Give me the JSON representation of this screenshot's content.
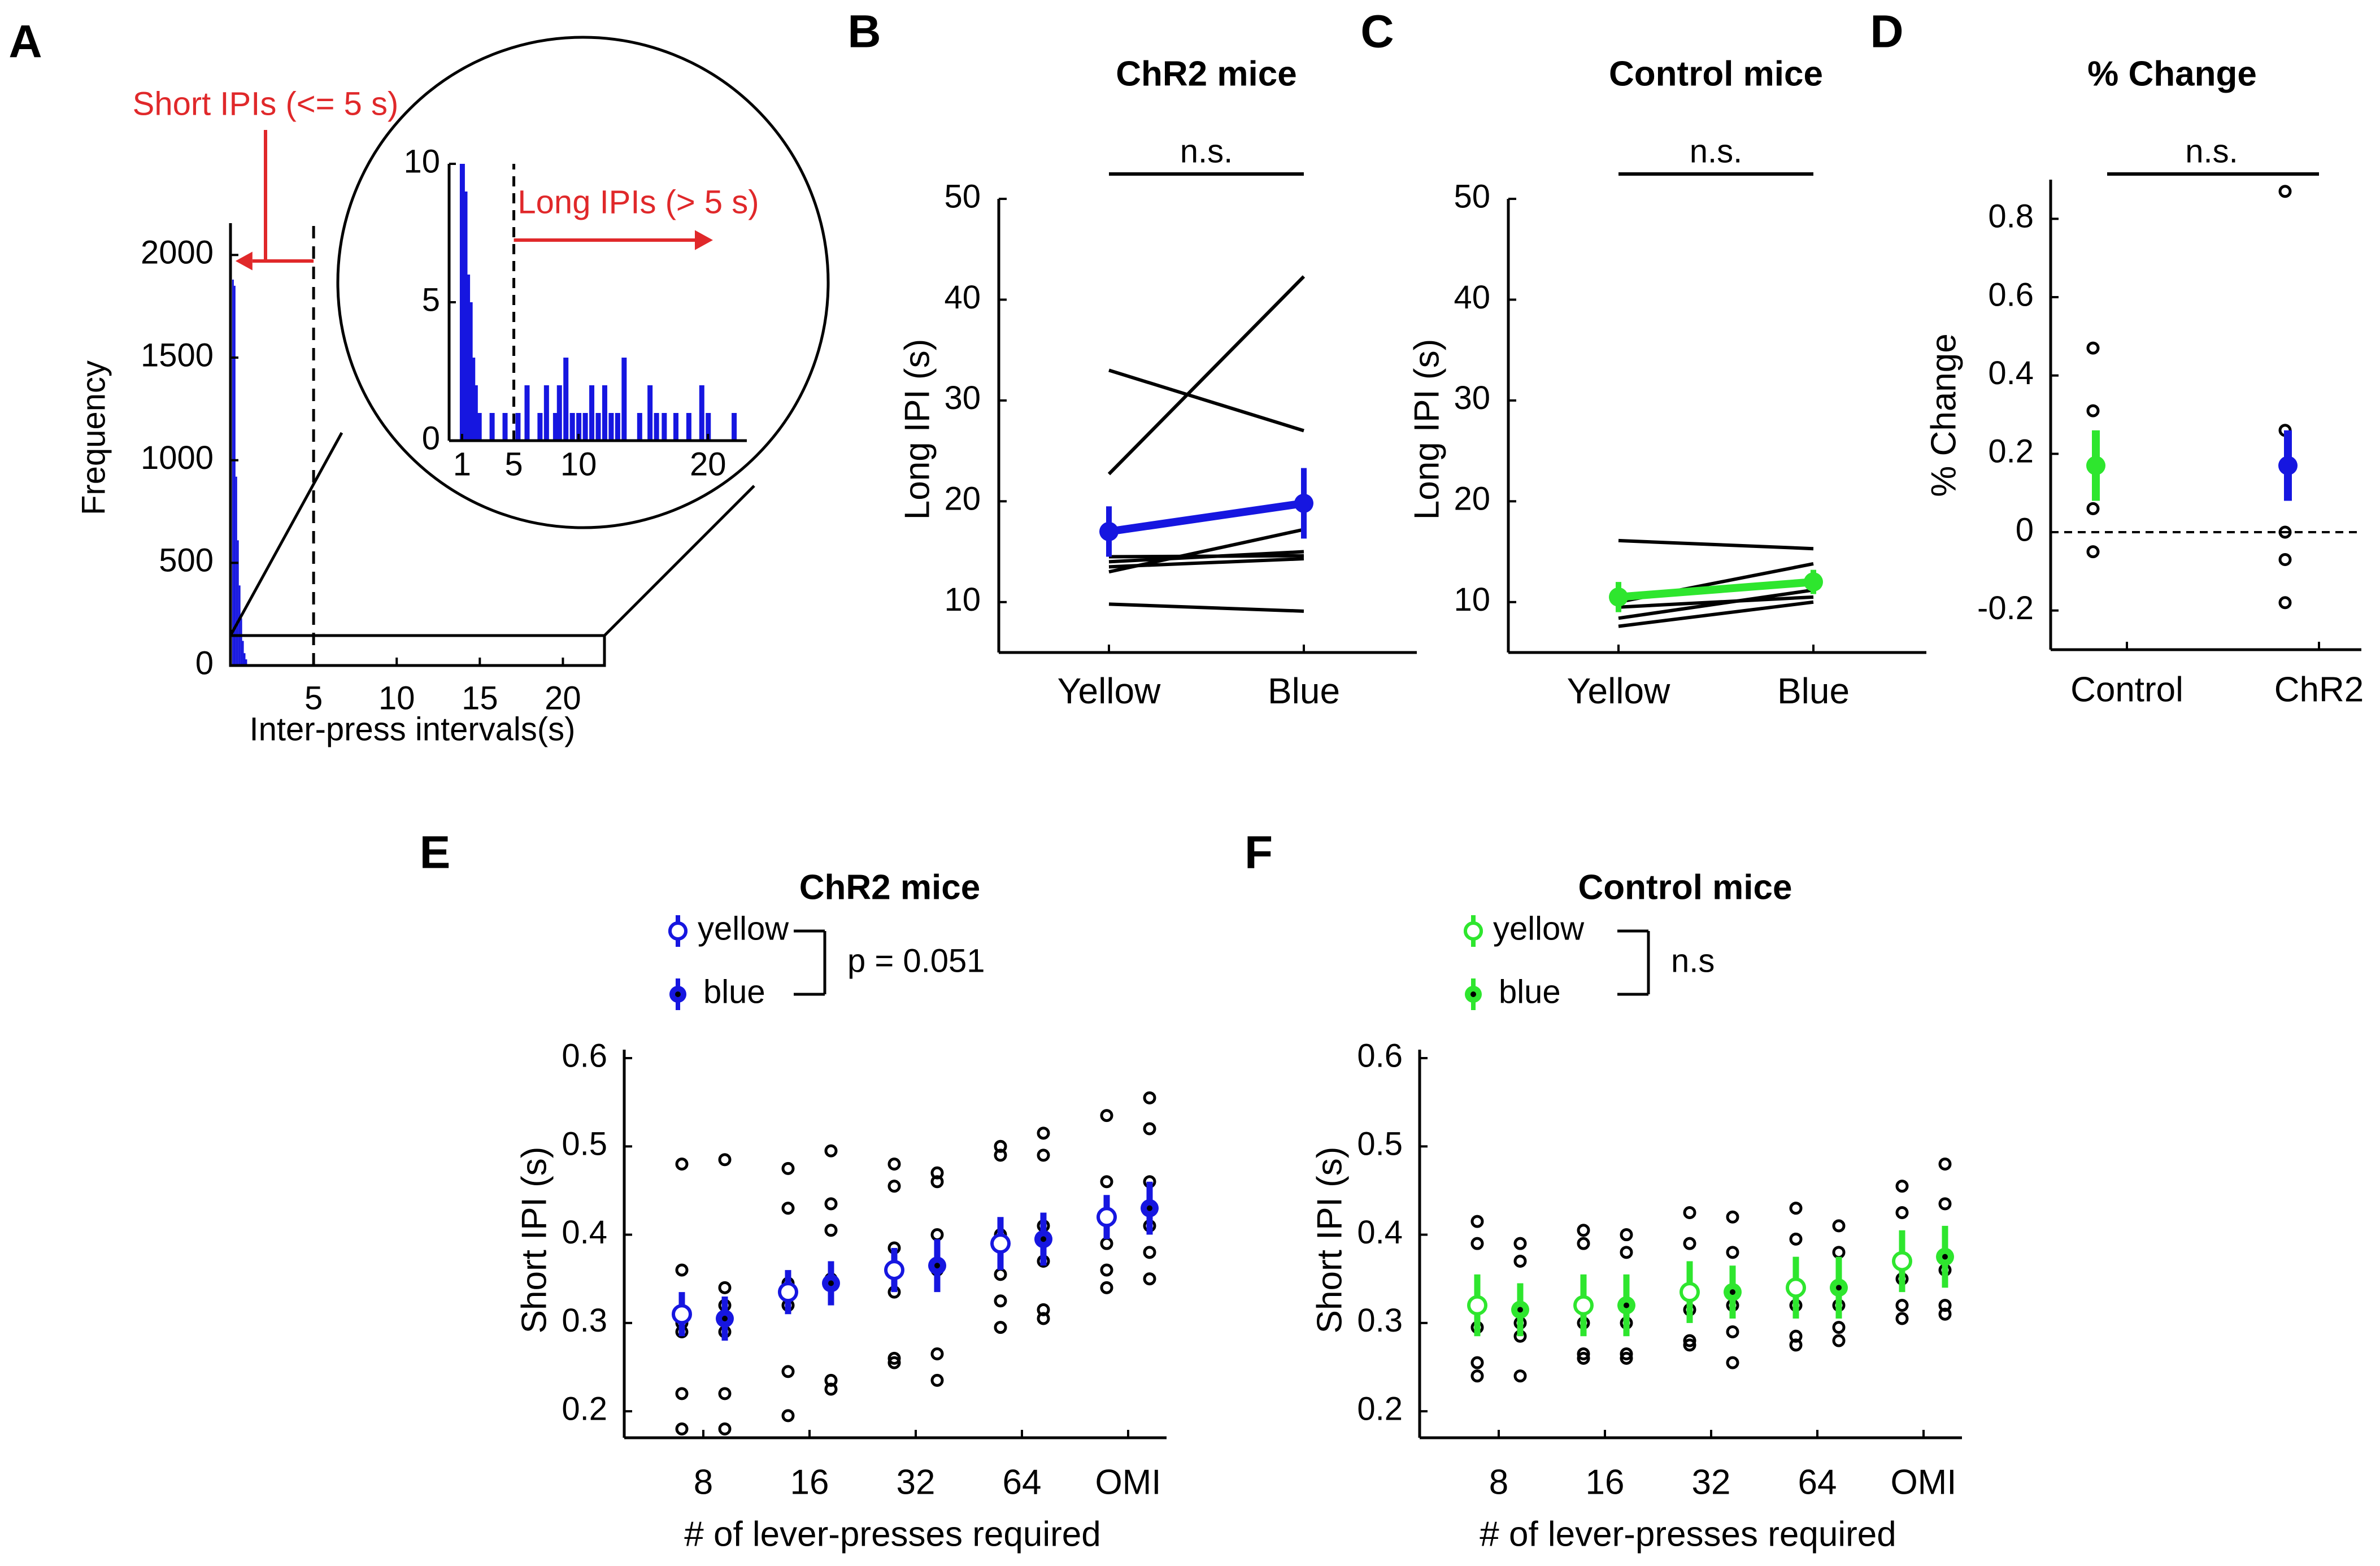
{
  "colors": {
    "ink": "#000000",
    "chr2_blue": "#1616e0",
    "control_green": "#2ee62e",
    "annotation_red": "#e0282a",
    "white": "#ffffff"
  },
  "chart_data": [
    {
      "panel": "A",
      "type": "bar",
      "title": "",
      "xlabel": "Inter-press intervals(s)",
      "ylabel": "Frequency",
      "xlim": [
        0,
        22.5
      ],
      "ylim": [
        0,
        2100
      ],
      "xticks": [
        5,
        10,
        15,
        20
      ],
      "yticks": [
        0,
        500,
        1000,
        1500,
        2000
      ],
      "threshold_s": 5,
      "bin_width_s": 0.1,
      "bins": [
        {
          "x": 0.15,
          "y": 1880
        },
        {
          "x": 0.25,
          "y": 1850
        },
        {
          "x": 0.35,
          "y": 920
        },
        {
          "x": 0.45,
          "y": 610
        },
        {
          "x": 0.55,
          "y": 390
        },
        {
          "x": 0.65,
          "y": 230
        },
        {
          "x": 0.75,
          "y": 120
        },
        {
          "x": 0.85,
          "y": 60
        },
        {
          "x": 0.95,
          "y": 30
        }
      ],
      "annotations": {
        "short_label": "Short IPIs (<= 5 s)"
      },
      "inset": {
        "xlim": [
          0,
          23
        ],
        "ylim": [
          0,
          10
        ],
        "xticks": [
          1,
          5,
          10,
          20
        ],
        "yticks": [
          0,
          5,
          10
        ],
        "long_label": "Long IPIs (> 5 s)",
        "bins": [
          {
            "x": 1.0,
            "y": 10
          },
          {
            "x": 1.2,
            "y": 9
          },
          {
            "x": 1.4,
            "y": 6
          },
          {
            "x": 1.6,
            "y": 5
          },
          {
            "x": 1.8,
            "y": 3
          },
          {
            "x": 2.0,
            "y": 2
          },
          {
            "x": 2.3,
            "y": 1
          },
          {
            "x": 3.3,
            "y": 1
          },
          {
            "x": 4.3,
            "y": 1
          },
          {
            "x": 5.3,
            "y": 1
          },
          {
            "x": 6.0,
            "y": 2
          },
          {
            "x": 7.0,
            "y": 1
          },
          {
            "x": 7.5,
            "y": 2
          },
          {
            "x": 8.2,
            "y": 1
          },
          {
            "x": 8.5,
            "y": 2
          },
          {
            "x": 9.0,
            "y": 3
          },
          {
            "x": 9.5,
            "y": 1
          },
          {
            "x": 10.0,
            "y": 1
          },
          {
            "x": 10.5,
            "y": 1
          },
          {
            "x": 11.0,
            "y": 2
          },
          {
            "x": 11.5,
            "y": 1
          },
          {
            "x": 12.0,
            "y": 2
          },
          {
            "x": 12.5,
            "y": 1
          },
          {
            "x": 13.0,
            "y": 1
          },
          {
            "x": 13.5,
            "y": 3
          },
          {
            "x": 14.7,
            "y": 1
          },
          {
            "x": 15.5,
            "y": 2
          },
          {
            "x": 16.0,
            "y": 1
          },
          {
            "x": 16.6,
            "y": 1
          },
          {
            "x": 17.5,
            "y": 1
          },
          {
            "x": 18.5,
            "y": 1
          },
          {
            "x": 19.5,
            "y": 2
          },
          {
            "x": 20.0,
            "y": 1
          },
          {
            "x": 22.0,
            "y": 1
          }
        ]
      }
    },
    {
      "panel": "B",
      "type": "line",
      "title": "ChR2 mice",
      "xlabel": "",
      "ylabel": "Long IPI (s)",
      "categories": [
        "Yellow",
        "Blue"
      ],
      "ylim": [
        5,
        50
      ],
      "yticks": [
        10,
        20,
        30,
        40,
        50
      ],
      "individual": [
        [
          22.7,
          42.3
        ],
        [
          33.0,
          27.0
        ],
        [
          13.0,
          17.2
        ],
        [
          14.0,
          15.0
        ],
        [
          14.5,
          14.6
        ],
        [
          13.5,
          14.3
        ],
        [
          9.8,
          9.1
        ]
      ],
      "mean": [
        17.0,
        19.8
      ],
      "error": [
        2.5,
        3.5
      ],
      "significance": "n.s."
    },
    {
      "panel": "C",
      "type": "line",
      "title": "Control mice",
      "xlabel": "",
      "ylabel": "Long IPI (s)",
      "categories": [
        "Yellow",
        "Blue"
      ],
      "ylim": [
        5,
        50
      ],
      "yticks": [
        10,
        20,
        30,
        40,
        50
      ],
      "individual": [
        [
          16.1,
          15.3
        ],
        [
          10.0,
          13.8
        ],
        [
          8.4,
          11.2
        ],
        [
          9.5,
          10.5
        ],
        [
          7.6,
          10.0
        ]
      ],
      "mean": [
        10.5,
        12.0
      ],
      "error": [
        1.5,
        1.2
      ],
      "significance": "n.s."
    },
    {
      "panel": "D",
      "type": "scatter",
      "title": "% Change",
      "xlabel": "",
      "ylabel": "% Change",
      "categories": [
        "Control",
        "ChR2"
      ],
      "ylim": [
        -0.3,
        0.9
      ],
      "yticks": [
        -0.2,
        0,
        0.2,
        0.4,
        0.6,
        0.8
      ],
      "points": [
        [
          0.47,
          0.31,
          0.06,
          -0.05
        ],
        [
          0.87,
          0.26,
          0.17,
          0.0,
          -0.07,
          -0.18
        ]
      ],
      "mean": [
        0.17,
        0.17
      ],
      "error": [
        0.09,
        0.09
      ],
      "significance": "n.s."
    },
    {
      "panel": "E",
      "type": "scatter",
      "title": "ChR2 mice",
      "xlabel": "# of lever-presses required",
      "ylabel": "Short IPI (s)",
      "categories": [
        "8",
        "16",
        "32",
        "64",
        "OMI"
      ],
      "ylim": [
        0.17,
        0.6
      ],
      "yticks": [
        0.2,
        0.3,
        0.4,
        0.5,
        0.6
      ],
      "legend": {
        "yellow": "yellow",
        "blue": "blue",
        "stat": "p = 0.051"
      },
      "series": [
        {
          "name": "yellow",
          "mean": [
            0.31,
            0.335,
            0.36,
            0.39,
            0.42
          ],
          "error": [
            0.025,
            0.025,
            0.025,
            0.03,
            0.025
          ],
          "points": [
            [
              0.48,
              0.36,
              0.3,
              0.29,
              0.22,
              0.18
            ],
            [
              0.475,
              0.43,
              0.345,
              0.32,
              0.245,
              0.195
            ],
            [
              0.48,
              0.455,
              0.385,
              0.335,
              0.26,
              0.255
            ],
            [
              0.5,
              0.49,
              0.4,
              0.355,
              0.325,
              0.295
            ],
            [
              0.535,
              0.46,
              0.42,
              0.39,
              0.36,
              0.34
            ]
          ]
        },
        {
          "name": "blue",
          "mean": [
            0.305,
            0.345,
            0.365,
            0.395,
            0.43
          ],
          "error": [
            0.025,
            0.025,
            0.03,
            0.03,
            0.03
          ],
          "points": [
            [
              0.485,
              0.34,
              0.32,
              0.29,
              0.22,
              0.18
            ],
            [
              0.495,
              0.435,
              0.405,
              0.35,
              0.235,
              0.225
            ],
            [
              0.47,
              0.46,
              0.4,
              0.36,
              0.265,
              0.235
            ],
            [
              0.515,
              0.49,
              0.41,
              0.37,
              0.315,
              0.305
            ],
            [
              0.555,
              0.52,
              0.46,
              0.41,
              0.38,
              0.35
            ]
          ]
        }
      ]
    },
    {
      "panel": "F",
      "type": "scatter",
      "title": "Control mice",
      "xlabel": "# of lever-presses required",
      "ylabel": "Short IPI (s)",
      "categories": [
        "8",
        "16",
        "32",
        "64",
        "OMI"
      ],
      "ylim": [
        0.17,
        0.6
      ],
      "yticks": [
        0.2,
        0.3,
        0.4,
        0.5,
        0.6
      ],
      "legend": {
        "yellow": "yellow",
        "blue": "blue",
        "stat": "n.s"
      },
      "series": [
        {
          "name": "yellow",
          "mean": [
            0.32,
            0.32,
            0.335,
            0.34,
            0.37
          ],
          "error": [
            0.035,
            0.035,
            0.035,
            0.035,
            0.035
          ],
          "points": [
            [
              0.415,
              0.39,
              0.295,
              0.255,
              0.24
            ],
            [
              0.405,
              0.39,
              0.3,
              0.265,
              0.26
            ],
            [
              0.425,
              0.39,
              0.315,
              0.28,
              0.275
            ],
            [
              0.43,
              0.395,
              0.32,
              0.285,
              0.275
            ],
            [
              0.455,
              0.425,
              0.35,
              0.32,
              0.305
            ]
          ]
        },
        {
          "name": "blue",
          "mean": [
            0.315,
            0.32,
            0.335,
            0.34,
            0.375
          ],
          "error": [
            0.03,
            0.035,
            0.03,
            0.035,
            0.035
          ],
          "points": [
            [
              0.39,
              0.37,
              0.3,
              0.285,
              0.24
            ],
            [
              0.4,
              0.38,
              0.3,
              0.265,
              0.26
            ],
            [
              0.42,
              0.38,
              0.32,
              0.29,
              0.255
            ],
            [
              0.41,
              0.38,
              0.32,
              0.295,
              0.28
            ],
            [
              0.48,
              0.435,
              0.36,
              0.32,
              0.31
            ]
          ]
        }
      ]
    }
  ]
}
